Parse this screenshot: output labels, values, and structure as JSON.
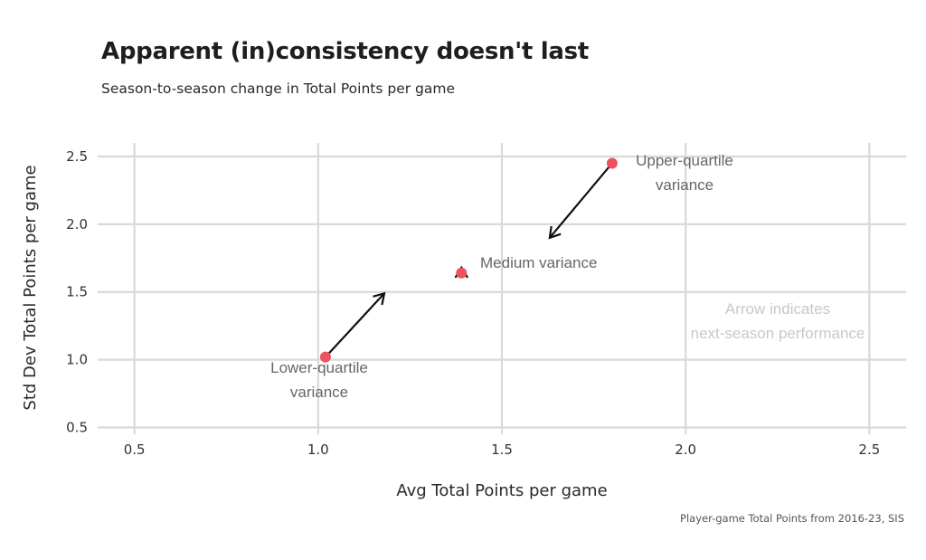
{
  "chart_data": {
    "type": "scatter",
    "title": "Apparent (in)consistency doesn't last",
    "subtitle": "Season-to-season change in Total Points per game",
    "xlabel": "Avg Total Points per game",
    "ylabel": "Std Dev Total Points per game",
    "caption": "Player-game Total Points from 2016-23, SIS",
    "xlim": [
      0.4,
      2.6
    ],
    "ylim": [
      0.45,
      2.6
    ],
    "xticks": [
      0.5,
      1.0,
      1.5,
      2.0,
      2.5
    ],
    "yticks": [
      0.5,
      1.0,
      1.5,
      2.0,
      2.5
    ],
    "xtick_labels": [
      "0.5",
      "1.0",
      "1.5",
      "2.0",
      "2.5"
    ],
    "ytick_labels": [
      "0.5",
      "1.0",
      "1.5",
      "2.0",
      "2.5"
    ],
    "grid": true,
    "point_color": "#f0515e",
    "arrow_color": "#111111",
    "points": [
      {
        "label": "Lower-quartile variance",
        "label_lines": [
          "Lower-quartile",
          "variance"
        ],
        "x": 1.02,
        "y": 1.02,
        "next_x": 1.18,
        "next_y": 1.49
      },
      {
        "label": "Medium variance",
        "label_lines": [
          "Medium variance"
        ],
        "x": 1.39,
        "y": 1.64,
        "next_x": 1.39,
        "next_y": 1.68
      },
      {
        "label": "Upper-quartile variance",
        "label_lines": [
          "Upper-quartile",
          "variance"
        ],
        "x": 1.8,
        "y": 2.45,
        "next_x": 1.63,
        "next_y": 1.9
      }
    ],
    "annotation_note": [
      "Arrow indicates",
      "next-season performance"
    ]
  }
}
